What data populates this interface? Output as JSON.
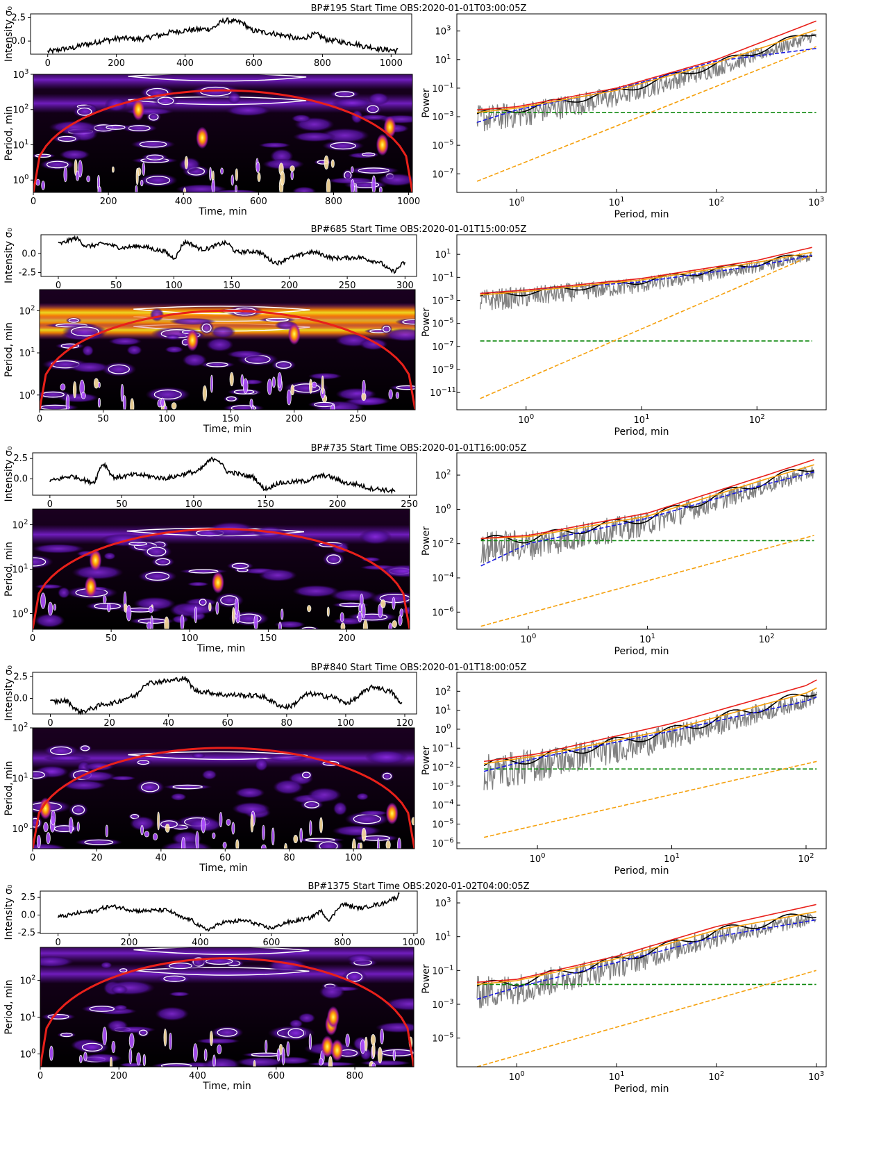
{
  "chart_data": [
    {
      "title": "BP#195 Start Time OBS:2020-01-01T03:00:05Z",
      "intensity": {
        "type": "line",
        "ylabel": "Intensity σ₀",
        "xlim": [
          -50,
          1060
        ],
        "ylim": [
          -1.4,
          2.9
        ],
        "xticks": [
          "0",
          "200",
          "400",
          "600",
          "800",
          "1000"
        ],
        "yticks": [
          "-0.0",
          "2.5"
        ],
        "x": [
          0,
          60,
          120,
          170,
          220,
          270,
          320,
          370,
          420,
          470,
          520,
          560,
          600,
          640,
          690,
          730,
          780,
          820,
          880,
          930,
          980,
          1020
        ],
        "y": [
          -1.1,
          -0.8,
          -0.3,
          0.1,
          0.3,
          0.2,
          0.6,
          1.0,
          1.2,
          1.3,
          2.2,
          2.0,
          1.1,
          0.9,
          0.6,
          0.2,
          0.7,
          0.1,
          -0.2,
          -0.6,
          -0.9,
          -1.0
        ]
      },
      "wavelet": {
        "type": "heatmap",
        "xlabel": "Time, min",
        "ylabel": "Period, min",
        "xlim": [
          0,
          1010
        ],
        "xticks": [
          "0",
          "200",
          "400",
          "600",
          "800",
          "1000"
        ],
        "ylim_log": [
          -0.35,
          3.0
        ],
        "cone_peak_period": 350,
        "hotspots": [
          [
            280,
            2.0
          ],
          [
            950,
            1.5
          ],
          [
            450,
            1.2
          ],
          [
            930,
            1.0
          ]
        ],
        "band_periods": [
          150,
          700
        ]
      },
      "spectrum": {
        "type": "line",
        "xlabel": "Period, min",
        "ylabel": "Power",
        "xlim_log": [
          -0.6,
          3.1
        ],
        "ylim_log": [
          -8.3,
          4.2
        ],
        "xticks": [
          "10^0",
          "10^1",
          "10^2",
          "10^3"
        ],
        "yticks": [
          "10^-7",
          "10^-5",
          "10^-3",
          "10^-1",
          "10^1",
          "10^3"
        ],
        "lines": {
          "red": {
            "x": [
              0.4,
              1,
              10,
              100,
              1000
            ],
            "y": [
              0.003,
              0.005,
              0.1,
              10,
              5000
            ]
          },
          "orange": {
            "x": [
              0.4,
              1,
              10,
              100,
              1000
            ],
            "y": [
              0.002,
              0.004,
              0.07,
              6,
              1200
            ]
          },
          "blue_dashed": {
            "x": [
              0.4,
              1,
              10,
              100,
              1000
            ],
            "y": [
              0.0004,
              0.003,
              0.08,
              8,
              60
            ]
          },
          "green_dashed": {
            "x": [
              0.4,
              1000
            ],
            "y": [
              0.002,
              0.002
            ]
          },
          "orange_dashed": {
            "x": [
              0.4,
              1000
            ],
            "y": [
              3e-08,
              80
            ]
          }
        }
      }
    },
    {
      "title": "BP#685 Start Time OBS:2020-01-01T15:00:05Z",
      "intensity": {
        "type": "line",
        "ylabel": "Intensity σ₀",
        "xlim": [
          -15,
          310
        ],
        "ylim": [
          -3.0,
          2.5
        ],
        "xticks": [
          "0",
          "50",
          "100",
          "150",
          "200",
          "250",
          "300"
        ],
        "yticks": [
          "-2.5",
          "0.0"
        ],
        "x": [
          0,
          15,
          25,
          40,
          55,
          70,
          90,
          100,
          110,
          125,
          145,
          155,
          170,
          190,
          200,
          220,
          240,
          260,
          275,
          290,
          300
        ],
        "y": [
          1.3,
          2.0,
          1.0,
          1.3,
          0.8,
          1.0,
          0.4,
          -0.5,
          1.5,
          0.6,
          1.4,
          0.2,
          0.3,
          -1.2,
          -0.5,
          0.2,
          -0.6,
          -0.5,
          -1.0,
          -2.3,
          -1.2
        ]
      },
      "wavelet": {
        "type": "heatmap",
        "xlabel": "Time, min",
        "ylabel": "Period, min",
        "xlim": [
          0,
          295
        ],
        "xticks": [
          "0",
          "50",
          "100",
          "150",
          "200",
          "250"
        ],
        "ylim_log": [
          -0.35,
          2.5
        ],
        "cone_peak_period": 100,
        "hotspots": [
          [
            120,
            1.3
          ],
          [
            200,
            1.45
          ]
        ],
        "band_periods": [
          35,
          60,
          90
        ]
      },
      "spectrum": {
        "type": "line",
        "xlabel": "Period, min",
        "ylabel": "Power",
        "xlim_log": [
          -0.6,
          2.6
        ],
        "ylim_log": [
          -12.5,
          2.7
        ],
        "xticks": [
          "10^0",
          "10^1",
          "10^2"
        ],
        "yticks": [
          "10^-11",
          "10^-9",
          "10^-7",
          "10^-5",
          "10^-3",
          "10^-1",
          "10^1"
        ],
        "lines": {
          "red": {
            "x": [
              0.4,
              1,
              10,
              100,
              300
            ],
            "y": [
              0.004,
              0.008,
              0.08,
              3,
              40
            ]
          },
          "orange": {
            "x": [
              0.4,
              1,
              10,
              100,
              300
            ],
            "y": [
              0.003,
              0.006,
              0.06,
              2,
              15
            ]
          },
          "blue_dashed": {
            "x": [
              0.4,
              1,
              10,
              100,
              300
            ],
            "y": [
              0.004,
              0.008,
              0.04,
              1,
              8
            ]
          },
          "green_dashed": {
            "x": [
              0.4,
              300
            ],
            "y": [
              3e-07,
              3e-07
            ]
          },
          "orange_dashed": {
            "x": [
              0.4,
              300
            ],
            "y": [
              3e-12,
              8
            ]
          }
        }
      }
    },
    {
      "title": "BP#735 Start Time OBS:2020-01-01T16:00:05Z",
      "intensity": {
        "type": "line",
        "ylabel": "Intensity σ₀",
        "xlim": [
          -12,
          255
        ],
        "ylim": [
          -2.0,
          3.2
        ],
        "xticks": [
          "0",
          "50",
          "100",
          "150",
          "200",
          "250"
        ],
        "yticks": [
          "0.0",
          "2.5"
        ],
        "x": [
          0,
          15,
          30,
          37,
          45,
          60,
          80,
          100,
          115,
          125,
          140,
          150,
          160,
          175,
          190,
          210,
          225,
          240
        ],
        "y": [
          -0.2,
          0.3,
          -0.4,
          1.8,
          0.2,
          0.5,
          0.1,
          0.8,
          2.5,
          0.8,
          0.3,
          -1.2,
          -0.5,
          -0.3,
          0.4,
          -0.6,
          -1.2,
          -1.5
        ]
      },
      "wavelet": {
        "type": "heatmap",
        "xlabel": "Time, min",
        "ylabel": "Period, min",
        "xlim": [
          0,
          240
        ],
        "xticks": [
          "0",
          "50",
          "100",
          "150",
          "200"
        ],
        "ylim_log": [
          -0.35,
          2.35
        ],
        "cone_peak_period": 80,
        "hotspots": [
          [
            37,
            0.6
          ],
          [
            40,
            1.2
          ],
          [
            118,
            0.7
          ]
        ],
        "band_periods": [
          60
        ]
      },
      "spectrum": {
        "type": "line",
        "xlabel": "Period, min",
        "ylabel": "Power",
        "xlim_log": [
          -0.6,
          2.5
        ],
        "ylim_log": [
          -7.0,
          3.3
        ],
        "xticks": [
          "10^0",
          "10^1",
          "10^2"
        ],
        "yticks": [
          "10^-6",
          "10^-4",
          "10^-2",
          "10^0",
          "10^2"
        ],
        "lines": {
          "red": {
            "x": [
              0.4,
              1,
              10,
              100,
              250
            ],
            "y": [
              0.02,
              0.03,
              0.6,
              100,
              800
            ]
          },
          "orange": {
            "x": [
              0.4,
              1,
              10,
              100,
              250
            ],
            "y": [
              0.02,
              0.025,
              0.4,
              60,
              400
            ]
          },
          "blue_dashed": {
            "x": [
              0.4,
              1,
              10,
              100,
              250
            ],
            "y": [
              0.0005,
              0.01,
              0.3,
              30,
              150
            ]
          },
          "green_dashed": {
            "x": [
              0.4,
              250
            ],
            "y": [
              0.015,
              0.015
            ]
          },
          "orange_dashed": {
            "x": [
              0.4,
              250
            ],
            "y": [
              1.5e-07,
              0.03
            ]
          }
        }
      }
    },
    {
      "title": "BP#840 Start Time OBS:2020-01-01T18:00:05Z",
      "intensity": {
        "type": "line",
        "ylabel": "Intensity σ₀",
        "xlim": [
          -6,
          124
        ],
        "ylim": [
          -1.8,
          3.0
        ],
        "xticks": [
          "0",
          "20",
          "40",
          "60",
          "80",
          "100",
          "120"
        ],
        "yticks": [
          "0.0",
          "2.5"
        ],
        "x": [
          0,
          5,
          10,
          20,
          28,
          33,
          40,
          45,
          50,
          60,
          70,
          80,
          88,
          95,
          100,
          110,
          115,
          119
        ],
        "y": [
          -0.4,
          -0.3,
          -1.5,
          -0.6,
          0.2,
          1.8,
          2.0,
          2.3,
          0.8,
          0.4,
          0.3,
          -1.0,
          0.5,
          0.2,
          -0.5,
          1.3,
          0.8,
          -0.6
        ]
      },
      "wavelet": {
        "type": "heatmap",
        "xlabel": "Time, min",
        "ylabel": "Period, min",
        "xlim": [
          0,
          119
        ],
        "xticks": [
          "0",
          "20",
          "40",
          "60",
          "80",
          "100"
        ],
        "ylim_log": [
          -0.4,
          2.0
        ],
        "cone_peak_period": 40,
        "hotspots": [
          [
            112,
            0.3
          ],
          [
            4,
            0.4
          ]
        ],
        "band_periods": [
          25
        ]
      },
      "spectrum": {
        "type": "line",
        "xlabel": "Period, min",
        "ylabel": "Power",
        "xlim_log": [
          -0.6,
          2.15
        ],
        "ylim_log": [
          -6.3,
          3.0
        ],
        "xticks": [
          "10^0",
          "10^1",
          "10^2"
        ],
        "yticks": [
          "10^-6",
          "10^-5",
          "10^-4",
          "10^-3",
          "10^-2",
          "10^-1",
          "10^0",
          "10^1",
          "10^2"
        ],
        "lines": {
          "red": {
            "x": [
              0.4,
              1,
              10,
              100,
              120
            ],
            "y": [
              0.02,
              0.05,
              2,
              200,
              400
            ]
          },
          "orange": {
            "x": [
              0.4,
              1,
              10,
              100,
              120
            ],
            "y": [
              0.015,
              0.04,
              1,
              80,
              150
            ]
          },
          "blue_dashed": {
            "x": [
              0.4,
              1,
              10,
              100,
              120
            ],
            "y": [
              0.006,
              0.03,
              0.8,
              30,
              50
            ]
          },
          "green_dashed": {
            "x": [
              0.4,
              120
            ],
            "y": [
              0.008,
              0.008
            ]
          },
          "orange_dashed": {
            "x": [
              0.4,
              120
            ],
            "y": [
              2e-06,
              0.02
            ]
          }
        }
      }
    },
    {
      "title": "BP#1375 Start Time OBS:2020-01-02T04:00:05Z",
      "intensity": {
        "type": "line",
        "ylabel": "Intensity σ₀",
        "xlim": [
          -50,
          1010
        ],
        "ylim": [
          -2.6,
          3.4
        ],
        "xticks": [
          "0",
          "200",
          "400",
          "600",
          "800",
          "1000"
        ],
        "yticks": [
          "-2.5",
          "0.0",
          "2.5"
        ],
        "x": [
          0,
          80,
          150,
          230,
          300,
          360,
          420,
          470,
          520,
          600,
          650,
          700,
          740,
          760,
          800,
          850,
          900,
          950,
          960
        ],
        "y": [
          -0.2,
          0.4,
          1.2,
          0.6,
          0.7,
          -0.5,
          -2.0,
          -1.0,
          -0.8,
          -1.8,
          -1.0,
          -0.5,
          0.5,
          -0.6,
          1.5,
          1.0,
          1.5,
          2.4,
          3.0
        ]
      },
      "wavelet": {
        "type": "heatmap",
        "xlabel": "Time, min",
        "ylabel": "Period, min",
        "xlim": [
          0,
          950
        ],
        "xticks": [
          "0",
          "200",
          "400",
          "600",
          "800"
        ],
        "ylim_log": [
          -0.35,
          2.9
        ],
        "cone_peak_period": 400,
        "hotspots": [
          [
            740,
            0.8
          ],
          [
            745,
            1.0
          ],
          [
            730,
            0.2
          ],
          [
            755,
            0.1
          ]
        ],
        "band_periods": [
          150,
          550
        ]
      },
      "spectrum": {
        "type": "line",
        "xlabel": "Period, min",
        "ylabel": "Power",
        "xlim_log": [
          -0.6,
          3.1
        ],
        "ylim_log": [
          -6.7,
          3.7
        ],
        "xticks": [
          "10^0",
          "10^1",
          "10^2",
          "10^3"
        ],
        "yticks": [
          "10^-5",
          "10^-3",
          "10^-1",
          "10^1",
          "10^3"
        ],
        "lines": {
          "red": {
            "x": [
              0.4,
              1,
              10,
              100,
              1000
            ],
            "y": [
              0.02,
              0.03,
              0.7,
              40,
              800
            ]
          },
          "orange": {
            "x": [
              0.4,
              1,
              10,
              100,
              1000
            ],
            "y": [
              0.015,
              0.025,
              0.5,
              25,
              300
            ]
          },
          "blue_dashed": {
            "x": [
              0.4,
              1,
              10,
              100,
              1000
            ],
            "y": [
              0.002,
              0.01,
              0.3,
              10,
              100
            ]
          },
          "green_dashed": {
            "x": [
              0.4,
              1000
            ],
            "y": [
              0.015,
              0.015
            ]
          },
          "orange_dashed": {
            "x": [
              0.4,
              1000
            ],
            "y": [
              2e-07,
              0.1
            ]
          }
        }
      }
    }
  ],
  "colors": {
    "red": "#e8201a",
    "orange": "#f5a00c",
    "blue": "#1a1ae0",
    "green": "#118a11",
    "grey": "#808080",
    "black": "#000000"
  }
}
